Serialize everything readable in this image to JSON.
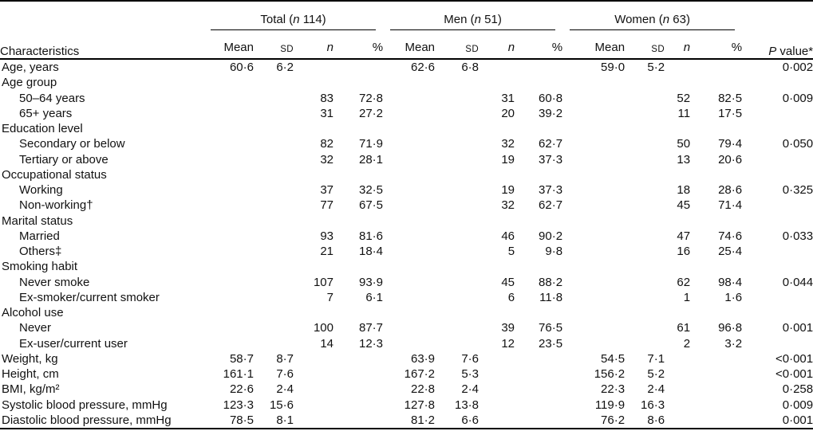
{
  "table": {
    "characteristics_header": "Characteristics",
    "groups": [
      {
        "prefix": "Total (",
        "n_symbol": "n",
        "suffix": " 114)"
      },
      {
        "prefix": "Men (",
        "n_symbol": "n",
        "suffix": " 51)"
      },
      {
        "prefix": "Women (",
        "n_symbol": "n",
        "suffix": " 63)"
      }
    ],
    "subheaders": {
      "mean": "Mean",
      "sd": "SD",
      "n": "n",
      "pct": "%"
    },
    "p_header": {
      "italic": "P",
      "rest": " value*"
    },
    "rows": [
      {
        "label": "Age, years",
        "indent": false,
        "cells": [
          "60·6",
          "6·2",
          "",
          "",
          "62·6",
          "6·8",
          "",
          "",
          "59·0",
          "5·2",
          "",
          "",
          "0·002"
        ]
      },
      {
        "label": "Age group",
        "indent": false,
        "cells": [
          "",
          "",
          "",
          "",
          "",
          "",
          "",
          "",
          "",
          "",
          "",
          "",
          ""
        ]
      },
      {
        "label": "50–64 years",
        "indent": true,
        "cells": [
          "",
          "",
          "83",
          "72·8",
          "",
          "",
          "31",
          "60·8",
          "",
          "",
          "52",
          "82·5",
          "0·009"
        ]
      },
      {
        "label": "65+ years",
        "indent": true,
        "cells": [
          "",
          "",
          "31",
          "27·2",
          "",
          "",
          "20",
          "39·2",
          "",
          "",
          "11",
          "17·5",
          ""
        ]
      },
      {
        "label": "Education level",
        "indent": false,
        "cells": [
          "",
          "",
          "",
          "",
          "",
          "",
          "",
          "",
          "",
          "",
          "",
          "",
          ""
        ]
      },
      {
        "label": "Secondary or below",
        "indent": true,
        "cells": [
          "",
          "",
          "82",
          "71·9",
          "",
          "",
          "32",
          "62·7",
          "",
          "",
          "50",
          "79·4",
          "0·050"
        ]
      },
      {
        "label": "Tertiary or above",
        "indent": true,
        "cells": [
          "",
          "",
          "32",
          "28·1",
          "",
          "",
          "19",
          "37·3",
          "",
          "",
          "13",
          "20·6",
          ""
        ]
      },
      {
        "label": "Occupational status",
        "indent": false,
        "cells": [
          "",
          "",
          "",
          "",
          "",
          "",
          "",
          "",
          "",
          "",
          "",
          "",
          ""
        ]
      },
      {
        "label": "Working",
        "indent": true,
        "cells": [
          "",
          "",
          "37",
          "32·5",
          "",
          "",
          "19",
          "37·3",
          "",
          "",
          "18",
          "28·6",
          "0·325"
        ]
      },
      {
        "label": "Non-working†",
        "indent": true,
        "cells": [
          "",
          "",
          "77",
          "67·5",
          "",
          "",
          "32",
          "62·7",
          "",
          "",
          "45",
          "71·4",
          ""
        ]
      },
      {
        "label": "Marital status",
        "indent": false,
        "cells": [
          "",
          "",
          "",
          "",
          "",
          "",
          "",
          "",
          "",
          "",
          "",
          "",
          ""
        ]
      },
      {
        "label": "Married",
        "indent": true,
        "cells": [
          "",
          "",
          "93",
          "81·6",
          "",
          "",
          "46",
          "90·2",
          "",
          "",
          "47",
          "74·6",
          "0·033"
        ]
      },
      {
        "label": "Others‡",
        "indent": true,
        "cells": [
          "",
          "",
          "21",
          "18·4",
          "",
          "",
          "5",
          "9·8",
          "",
          "",
          "16",
          "25·4",
          ""
        ]
      },
      {
        "label": "Smoking habit",
        "indent": false,
        "cells": [
          "",
          "",
          "",
          "",
          "",
          "",
          "",
          "",
          "",
          "",
          "",
          "",
          ""
        ]
      },
      {
        "label": "Never smoke",
        "indent": true,
        "cells": [
          "",
          "",
          "107",
          "93·9",
          "",
          "",
          "45",
          "88·2",
          "",
          "",
          "62",
          "98·4",
          "0·044"
        ]
      },
      {
        "label": "Ex-smoker/current smoker",
        "indent": true,
        "cells": [
          "",
          "",
          "7",
          "6·1",
          "",
          "",
          "6",
          "11·8",
          "",
          "",
          "1",
          "1·6",
          ""
        ]
      },
      {
        "label": "Alcohol use",
        "indent": false,
        "cells": [
          "",
          "",
          "",
          "",
          "",
          "",
          "",
          "",
          "",
          "",
          "",
          "",
          ""
        ]
      },
      {
        "label": "Never",
        "indent": true,
        "cells": [
          "",
          "",
          "100",
          "87·7",
          "",
          "",
          "39",
          "76·5",
          "",
          "",
          "61",
          "96·8",
          "0·001"
        ]
      },
      {
        "label": "Ex-user/current user",
        "indent": true,
        "cells": [
          "",
          "",
          "14",
          "12·3",
          "",
          "",
          "12",
          "23·5",
          "",
          "",
          "2",
          "3·2",
          ""
        ]
      },
      {
        "label": "Weight, kg",
        "indent": false,
        "cells": [
          "58·7",
          "8·7",
          "",
          "",
          "63·9",
          "7·6",
          "",
          "",
          "54·5",
          "7·1",
          "",
          "",
          "<0·001"
        ]
      },
      {
        "label": "Height, cm",
        "indent": false,
        "cells": [
          "161·1",
          "7·6",
          "",
          "",
          "167·2",
          "5·3",
          "",
          "",
          "156·2",
          "5·2",
          "",
          "",
          "<0·001"
        ]
      },
      {
        "label": "BMI, kg/m²",
        "indent": false,
        "cells": [
          "22·6",
          "2·4",
          "",
          "",
          "22·8",
          "2·4",
          "",
          "",
          "22·3",
          "2·4",
          "",
          "",
          "0·258"
        ]
      },
      {
        "label": "Systolic blood pressure, mmHg",
        "indent": false,
        "cells": [
          "123·3",
          "15·6",
          "",
          "",
          "127·8",
          "13·8",
          "",
          "",
          "119·9",
          "16·3",
          "",
          "",
          "0·009"
        ]
      },
      {
        "label": "Diastolic blood pressure, mmHg",
        "indent": false,
        "cells": [
          "78·5",
          "8·1",
          "",
          "",
          "81·2",
          "6·6",
          "",
          "",
          "76·2",
          "8·6",
          "",
          "",
          "0·001"
        ]
      }
    ]
  }
}
